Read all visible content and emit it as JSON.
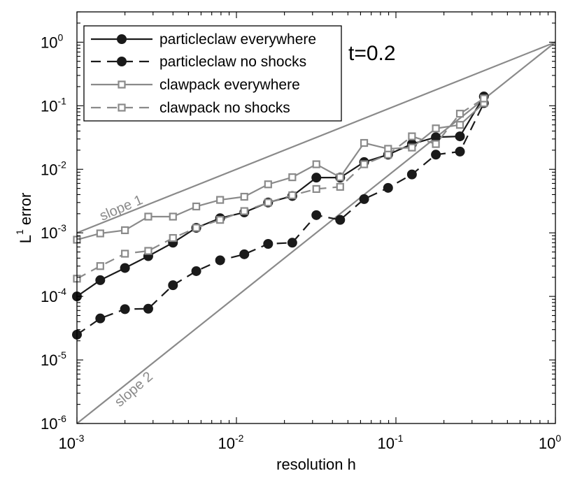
{
  "chart_data": {
    "type": "line",
    "xscale": "log",
    "yscale": "log",
    "xlim": [
      0.001,
      1
    ],
    "ylim": [
      1e-06,
      3
    ],
    "xlabel": "resolution h",
    "ylabel_main": "L",
    "ylabel_sup": "1",
    "ylabel_rest": " error",
    "xticks": [
      {
        "value": 0.001,
        "base": "10",
        "exp": "-3"
      },
      {
        "value": 0.01,
        "base": "10",
        "exp": "-2"
      },
      {
        "value": 0.1,
        "base": "10",
        "exp": "-1"
      },
      {
        "value": 1,
        "base": "10",
        "exp": "0"
      }
    ],
    "yticks": [
      {
        "value": 1e-06,
        "base": "10",
        "exp": "-6"
      },
      {
        "value": 1e-05,
        "base": "10",
        "exp": "-5"
      },
      {
        "value": 0.0001,
        "base": "10",
        "exp": "-4"
      },
      {
        "value": 0.001,
        "base": "10",
        "exp": "-3"
      },
      {
        "value": 0.01,
        "base": "10",
        "exp": "-2"
      },
      {
        "value": 0.1,
        "base": "10",
        "exp": "-1"
      },
      {
        "value": 1,
        "base": "10",
        "exp": "0"
      }
    ],
    "annotations": {
      "time": "t=0.2",
      "slope1": "slope 1",
      "slope2": "slope 2"
    },
    "reference_lines": [
      {
        "name": "slope 1",
        "x": [
          0.001,
          1
        ],
        "y": [
          0.001,
          1
        ],
        "color": "#8a8a8a"
      },
      {
        "name": "slope 2",
        "x": [
          0.001,
          1
        ],
        "y": [
          1e-06,
          1
        ],
        "color": "#8a8a8a"
      }
    ],
    "series": [
      {
        "name": "particleclaw everywhere",
        "color": "#1a1a1a",
        "dash": "solid",
        "marker": "circle",
        "x": [
          0.001,
          0.0014,
          0.002,
          0.0028,
          0.004,
          0.0056,
          0.0079,
          0.0112,
          0.0158,
          0.0224,
          0.0317,
          0.0447,
          0.0632,
          0.0893,
          0.126,
          0.178,
          0.252,
          0.356
        ],
        "y": [
          0.0001,
          0.00018,
          0.00028,
          0.00043,
          0.0007,
          0.0012,
          0.0017,
          0.0021,
          0.003,
          0.0038,
          0.0074,
          0.0074,
          0.013,
          0.017,
          0.025,
          0.032,
          0.033,
          0.14
        ]
      },
      {
        "name": "particleclaw no shocks",
        "color": "#1a1a1a",
        "dash": "dashed",
        "marker": "circle",
        "x": [
          0.001,
          0.0014,
          0.002,
          0.0028,
          0.004,
          0.0056,
          0.0079,
          0.0112,
          0.0158,
          0.0224,
          0.0317,
          0.0447,
          0.0632,
          0.0893,
          0.126,
          0.178,
          0.252,
          0.356
        ],
        "y": [
          2.5e-05,
          4.5e-05,
          6.3e-05,
          6.4e-05,
          0.00015,
          0.00025,
          0.00037,
          0.00046,
          0.00067,
          0.0007,
          0.0019,
          0.0016,
          0.0034,
          0.0051,
          0.0083,
          0.017,
          0.019,
          0.11
        ]
      },
      {
        "name": "clawpack everywhere",
        "color": "#8a8a8a",
        "dash": "solid",
        "marker": "square",
        "x": [
          0.001,
          0.0014,
          0.002,
          0.0028,
          0.004,
          0.0056,
          0.0079,
          0.0112,
          0.0158,
          0.0224,
          0.0317,
          0.0447,
          0.0632,
          0.0893,
          0.126,
          0.178,
          0.252,
          0.356
        ],
        "y": [
          0.00078,
          0.00098,
          0.0011,
          0.0018,
          0.0018,
          0.0026,
          0.0033,
          0.0037,
          0.0058,
          0.0075,
          0.012,
          0.0075,
          0.026,
          0.021,
          0.022,
          0.044,
          0.05,
          0.11
        ]
      },
      {
        "name": "clawpack no shocks",
        "color": "#8a8a8a",
        "dash": "dashed",
        "marker": "square",
        "x": [
          0.001,
          0.0014,
          0.002,
          0.0028,
          0.004,
          0.0056,
          0.0079,
          0.0112,
          0.0158,
          0.0224,
          0.0317,
          0.0447,
          0.0632,
          0.0893,
          0.126,
          0.178,
          0.252,
          0.356
        ],
        "y": [
          0.00019,
          0.0003,
          0.00047,
          0.00052,
          0.00083,
          0.0012,
          0.0016,
          0.0022,
          0.003,
          0.0039,
          0.0049,
          0.0053,
          0.012,
          0.017,
          0.033,
          0.025,
          0.075,
          0.13
        ]
      }
    ]
  }
}
